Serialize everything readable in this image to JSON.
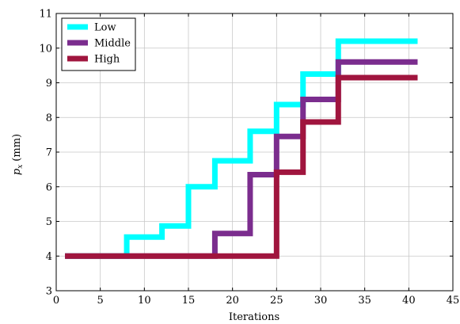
{
  "chart_data": {
    "type": "line",
    "step": "post",
    "xlabel": "Iterations",
    "ylabel_base": "p",
    "ylabel_sub": "x",
    "ylabel_unit": "(mm)",
    "xlim": [
      0,
      45
    ],
    "ylim": [
      3,
      11
    ],
    "xticks": [
      0,
      5,
      10,
      15,
      20,
      25,
      30,
      35,
      40,
      45
    ],
    "yticks": [
      3,
      4,
      5,
      6,
      7,
      8,
      9,
      10,
      11
    ],
    "grid": true,
    "legend_position": "top-left",
    "series": [
      {
        "name": "Low",
        "color": "#00ffff",
        "x": [
          1,
          8,
          12,
          15,
          18,
          22,
          25,
          28,
          32,
          41
        ],
        "y": [
          4.0,
          4.55,
          4.87,
          6.0,
          6.75,
          7.6,
          8.37,
          9.25,
          10.2,
          10.2
        ]
      },
      {
        "name": "Middle",
        "color": "#7b2d8e",
        "x": [
          1,
          18,
          22,
          25,
          28,
          32,
          41
        ],
        "y": [
          4.0,
          4.65,
          6.35,
          7.45,
          8.52,
          9.6,
          9.6
        ]
      },
      {
        "name": "High",
        "color": "#a0153e",
        "x": [
          1,
          25,
          28,
          32,
          41
        ],
        "y": [
          4.0,
          6.42,
          7.87,
          9.15,
          9.15
        ]
      }
    ]
  }
}
